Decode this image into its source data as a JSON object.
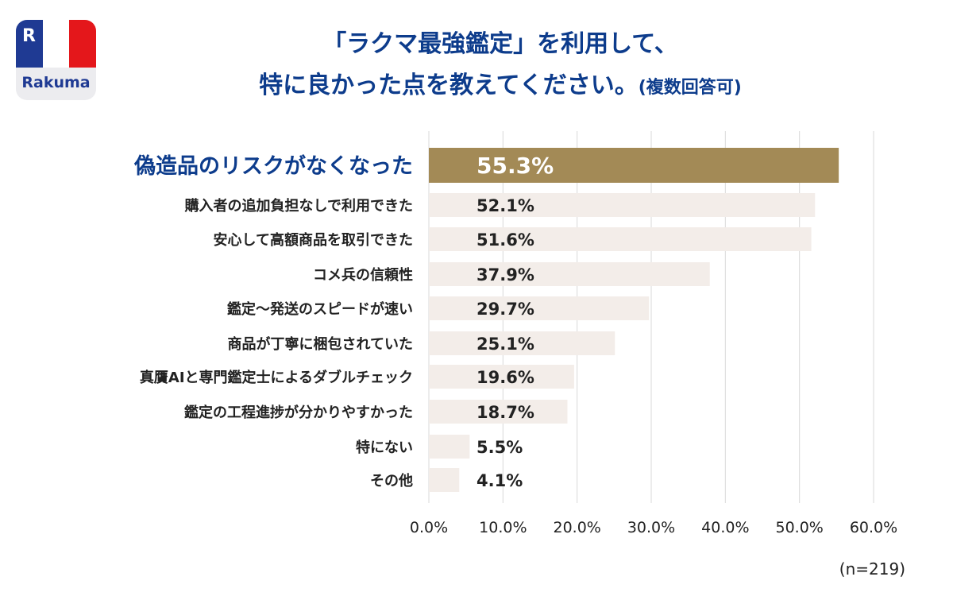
{
  "logo": {
    "text": "Rakuma",
    "mark": "R",
    "colors": [
      "#1f3a93",
      "#ffffff",
      "#e4171b"
    ]
  },
  "title": {
    "line1": "「ラクマ最強鑑定」を利用して、",
    "line2": "特に良かった点を教えてください。",
    "line2_note": "(複数回答可)"
  },
  "note": "(n=219)",
  "chart_data": {
    "type": "bar",
    "orientation": "horizontal",
    "categories": [
      "偽造品のリスクがなくなった",
      "購入者の追加負担なしで利用できた",
      "安心して高額商品を取引できた",
      "コメ兵の信頼性",
      "鑑定〜発送のスピードが速い",
      "商品が丁寧に梱包されていた",
      "真贋AIと専門鑑定士によるダブルチェック",
      "鑑定の工程進捗が分かりやすかった",
      "特にない",
      "その他"
    ],
    "values": [
      55.3,
      52.1,
      51.6,
      37.9,
      29.7,
      25.1,
      19.6,
      18.7,
      5.5,
      4.1
    ],
    "data_labels": [
      "55.3%",
      "52.1%",
      "51.6%",
      "37.9%",
      "29.7%",
      "25.1%",
      "19.6%",
      "18.7%",
      "5.5%",
      "4.1%"
    ],
    "xlim": [
      0,
      60
    ],
    "ticks": [
      "0.0%",
      "10.0%",
      "20.0%",
      "30.0%",
      "40.0%",
      "50.0%",
      "60.0%"
    ],
    "grid": true,
    "highlight_color": "#a38a56",
    "bar_color": "#f3ede9",
    "highlight_label_color": "#0d3c8c"
  }
}
